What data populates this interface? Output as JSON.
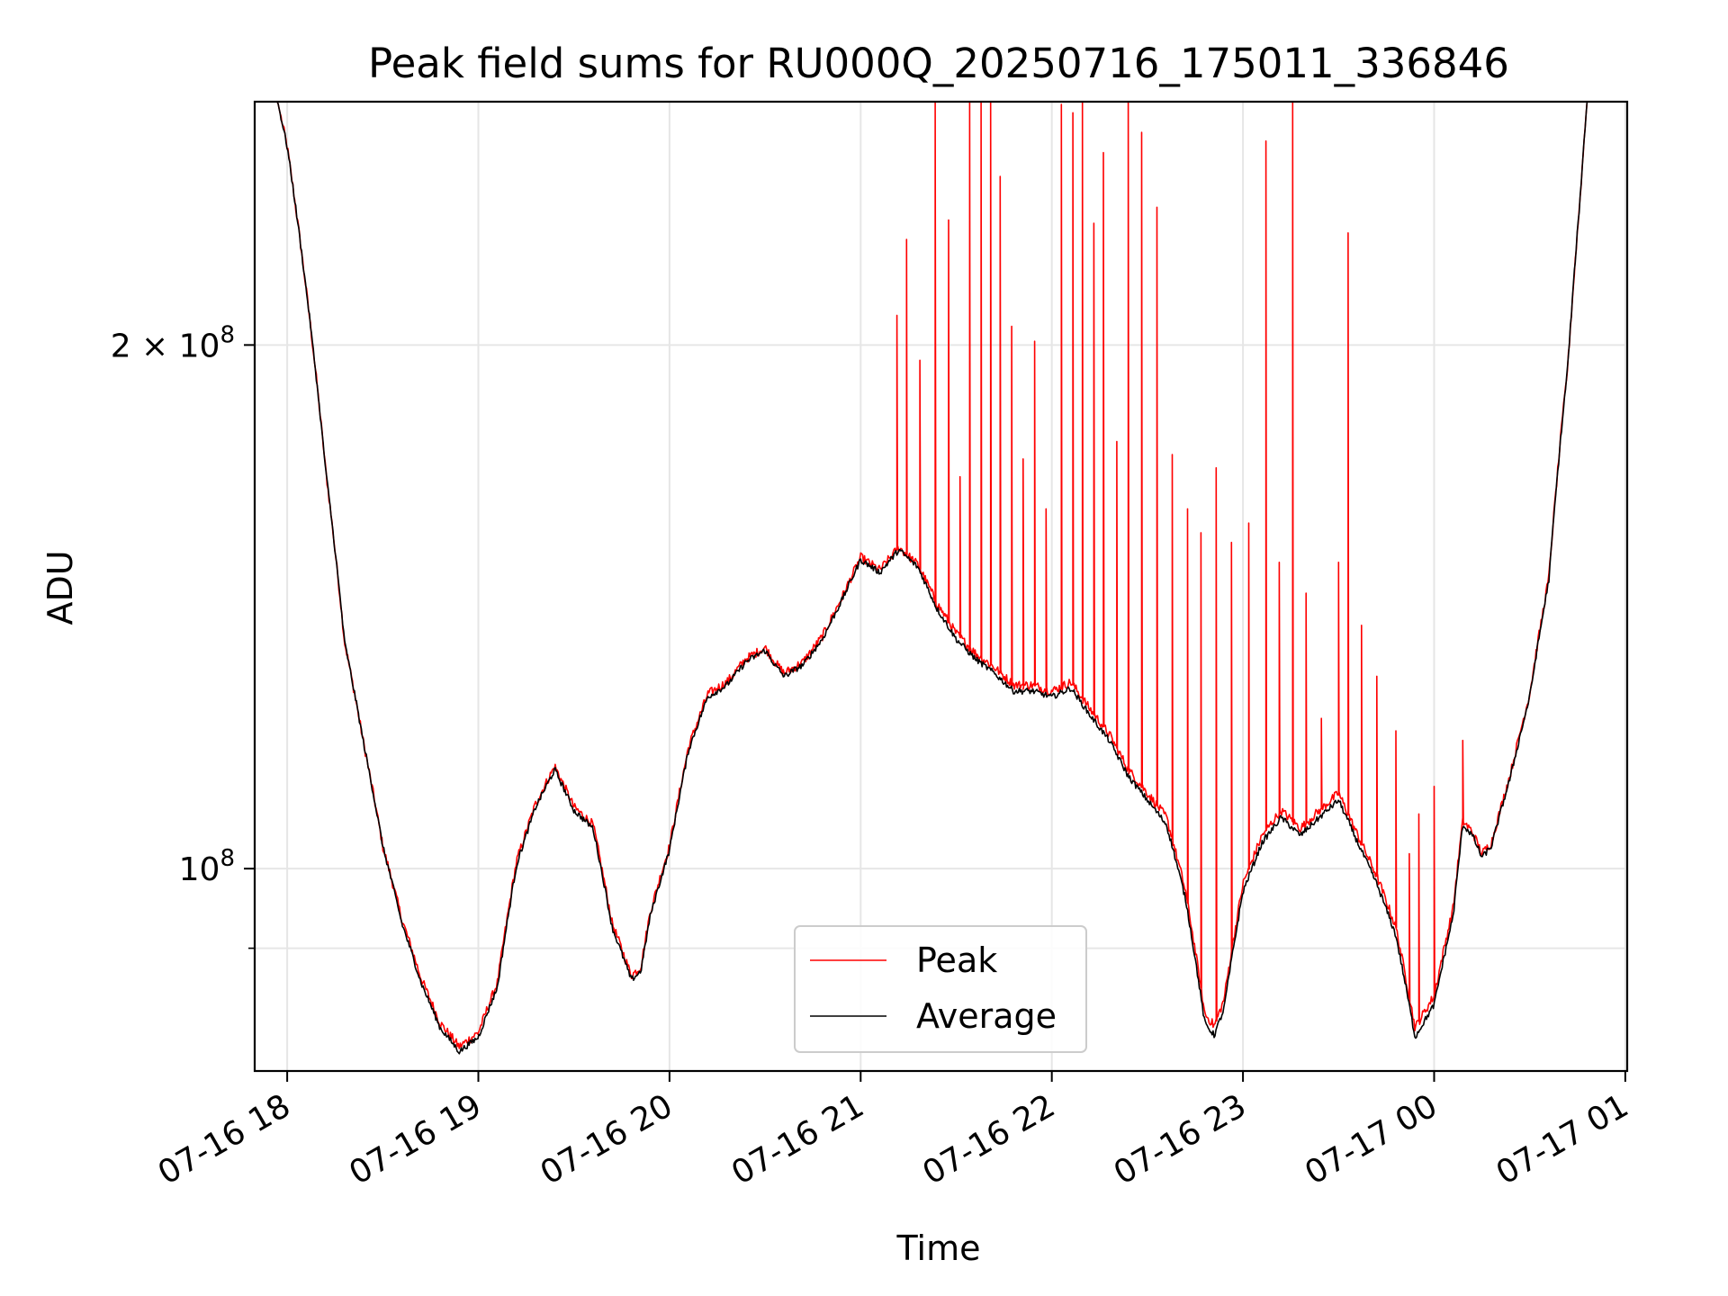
{
  "chart_data": {
    "type": "line",
    "title": "Peak field sums for RU000Q_20250716_175011_336846",
    "xlabel": "Time",
    "ylabel": "ADU",
    "x_unit": "hours",
    "xlim": [
      17.83,
      25.01
    ],
    "ylim": [
      76500000,
      276000000
    ],
    "y_scale": "log",
    "grid": true,
    "legend_position": "lower center",
    "x_ticks": [
      {
        "value": 18,
        "label": "07-16 18"
      },
      {
        "value": 19,
        "label": "07-16 19"
      },
      {
        "value": 20,
        "label": "07-16 20"
      },
      {
        "value": 21,
        "label": "07-16 21"
      },
      {
        "value": 22,
        "label": "07-16 22"
      },
      {
        "value": 23,
        "label": "07-16 23"
      },
      {
        "value": 24,
        "label": "07-17 00"
      },
      {
        "value": 25,
        "label": "07-17 01"
      }
    ],
    "y_ticks_major": [
      {
        "value": 100000000,
        "base": "10",
        "exp": "8",
        "prefix": ""
      },
      {
        "value": 200000000,
        "base": "10",
        "exp": "8",
        "prefix": "2 × "
      }
    ],
    "y_ticks_minor": [
      90000000
    ],
    "series": [
      {
        "name": "Peak",
        "color": "#ff0000",
        "baseline": [
          [
            17.84,
            276000000
          ],
          [
            17.95,
            276000000
          ],
          [
            18.0,
            260000000
          ],
          [
            18.1,
            215000000
          ],
          [
            18.2,
            170000000
          ],
          [
            18.3,
            135000000
          ],
          [
            18.4,
            118000000
          ],
          [
            18.5,
            103000000
          ],
          [
            18.6,
            93500000
          ],
          [
            18.7,
            86500000
          ],
          [
            18.8,
            81500000
          ],
          [
            18.9,
            79000000
          ],
          [
            19.0,
            80500000
          ],
          [
            19.1,
            86000000
          ],
          [
            19.2,
            101000000
          ],
          [
            19.3,
            109000000
          ],
          [
            19.4,
            114500000
          ],
          [
            19.5,
            108500000
          ],
          [
            19.6,
            106000000
          ],
          [
            19.7,
            93000000
          ],
          [
            19.8,
            86800000
          ],
          [
            19.85,
            87800000
          ],
          [
            19.9,
            94500000
          ],
          [
            20.0,
            103000000
          ],
          [
            20.1,
            117500000
          ],
          [
            20.2,
            126000000
          ],
          [
            20.3,
            128000000
          ],
          [
            20.4,
            132000000
          ],
          [
            20.5,
            134000000
          ],
          [
            20.55,
            131500000
          ],
          [
            20.6,
            129500000
          ],
          [
            20.7,
            131500000
          ],
          [
            20.8,
            136000000
          ],
          [
            20.9,
            143000000
          ],
          [
            21.0,
            151000000
          ],
          [
            21.1,
            148500000
          ],
          [
            21.2,
            153000000
          ],
          [
            21.3,
            149500000
          ],
          [
            21.4,
            142000000
          ],
          [
            21.5,
            136500000
          ],
          [
            21.6,
            133000000
          ],
          [
            21.7,
            130500000
          ],
          [
            21.8,
            127500000
          ],
          [
            21.9,
            127500000
          ],
          [
            22.0,
            126500000
          ],
          [
            22.1,
            128000000
          ],
          [
            22.2,
            123500000
          ],
          [
            22.3,
            119500000
          ],
          [
            22.4,
            114000000
          ],
          [
            22.5,
            110500000
          ],
          [
            22.6,
            107000000
          ],
          [
            22.7,
            97000000
          ],
          [
            22.8,
            82500000
          ],
          [
            22.85,
            81200000
          ],
          [
            22.9,
            84000000
          ],
          [
            23.0,
            98000000
          ],
          [
            23.1,
            104500000
          ],
          [
            23.2,
            108000000
          ],
          [
            23.3,
            105500000
          ],
          [
            23.4,
            108000000
          ],
          [
            23.5,
            110500000
          ],
          [
            23.6,
            104500000
          ],
          [
            23.7,
            99000000
          ],
          [
            23.8,
            92500000
          ],
          [
            23.9,
            81000000
          ],
          [
            24.0,
            84500000
          ],
          [
            24.1,
            95000000
          ],
          [
            24.15,
            106500000
          ],
          [
            24.2,
            105000000
          ],
          [
            24.25,
            102000000
          ],
          [
            24.3,
            103500000
          ],
          [
            24.4,
            113500000
          ],
          [
            24.5,
            126000000
          ],
          [
            24.6,
            147000000
          ],
          [
            24.7,
            195000000
          ],
          [
            24.76,
            240000000
          ],
          [
            24.8,
            276000000
          ],
          [
            25.01,
            276000000
          ]
        ],
        "spikes": [
          [
            21.19,
            208000000
          ],
          [
            21.24,
            230000000
          ],
          [
            21.31,
            196000000
          ],
          [
            21.39,
            276000000
          ],
          [
            21.46,
            236000000
          ],
          [
            21.52,
            168000000
          ],
          [
            21.57,
            276000000
          ],
          [
            21.63,
            276000000
          ],
          [
            21.68,
            276000000
          ],
          [
            21.73,
            250000000
          ],
          [
            21.79,
            205000000
          ],
          [
            21.85,
            172000000
          ],
          [
            21.91,
            201000000
          ],
          [
            21.97,
            161000000
          ],
          [
            22.05,
            275000000
          ],
          [
            22.11,
            272000000
          ],
          [
            22.16,
            276000000
          ],
          [
            22.22,
            235000000
          ],
          [
            22.27,
            258000000
          ],
          [
            22.34,
            176000000
          ],
          [
            22.4,
            276000000
          ],
          [
            22.47,
            265000000
          ],
          [
            22.55,
            240000000
          ],
          [
            22.63,
            173000000
          ],
          [
            22.71,
            161000000
          ],
          [
            22.78,
            156000000
          ],
          [
            22.86,
            170000000
          ],
          [
            22.94,
            154000000
          ],
          [
            23.03,
            158000000
          ],
          [
            23.12,
            262000000
          ],
          [
            23.19,
            150000000
          ],
          [
            23.26,
            276000000
          ],
          [
            23.33,
            144000000
          ],
          [
            23.41,
            122000000
          ],
          [
            23.5,
            150000000
          ],
          [
            23.55,
            232000000
          ],
          [
            23.62,
            138000000
          ],
          [
            23.7,
            129000000
          ],
          [
            23.8,
            120000000
          ],
          [
            23.87,
            102000000
          ],
          [
            23.92,
            107500000
          ],
          [
            24.0,
            111500000
          ],
          [
            24.15,
            118500000
          ]
        ]
      },
      {
        "name": "Average",
        "color": "#000000",
        "points": [
          [
            17.84,
            276000000
          ],
          [
            17.95,
            276000000
          ],
          [
            18.0,
            260000000
          ],
          [
            18.1,
            215000000
          ],
          [
            18.2,
            170000000
          ],
          [
            18.3,
            135000000
          ],
          [
            18.4,
            118000000
          ],
          [
            18.5,
            103000000
          ],
          [
            18.6,
            93000000
          ],
          [
            18.7,
            86000000
          ],
          [
            18.8,
            81000000
          ],
          [
            18.9,
            78500000
          ],
          [
            19.0,
            80000000
          ],
          [
            19.1,
            85500000
          ],
          [
            19.2,
            100500000
          ],
          [
            19.3,
            108500000
          ],
          [
            19.4,
            114000000
          ],
          [
            19.5,
            108000000
          ],
          [
            19.6,
            105500000
          ],
          [
            19.7,
            92500000
          ],
          [
            19.8,
            86300000
          ],
          [
            19.85,
            87300000
          ],
          [
            19.9,
            94000000
          ],
          [
            20.0,
            102500000
          ],
          [
            20.1,
            117000000
          ],
          [
            20.2,
            125500000
          ],
          [
            20.3,
            127500000
          ],
          [
            20.4,
            131500000
          ],
          [
            20.5,
            133500000
          ],
          [
            20.55,
            131000000
          ],
          [
            20.6,
            129000000
          ],
          [
            20.7,
            131000000
          ],
          [
            20.8,
            135500000
          ],
          [
            20.9,
            142500000
          ],
          [
            21.0,
            150500000
          ],
          [
            21.1,
            148000000
          ],
          [
            21.2,
            152500000
          ],
          [
            21.3,
            149000000
          ],
          [
            21.4,
            141000000
          ],
          [
            21.5,
            135500000
          ],
          [
            21.6,
            132000000
          ],
          [
            21.7,
            129500000
          ],
          [
            21.8,
            126500000
          ],
          [
            21.9,
            126500000
          ],
          [
            22.0,
            125500000
          ],
          [
            22.1,
            127000000
          ],
          [
            22.2,
            122500000
          ],
          [
            22.3,
            118500000
          ],
          [
            22.4,
            113000000
          ],
          [
            22.5,
            109500000
          ],
          [
            22.6,
            106000000
          ],
          [
            22.7,
            96000000
          ],
          [
            22.8,
            81500000
          ],
          [
            22.85,
            80200000
          ],
          [
            22.9,
            83000000
          ],
          [
            23.0,
            97000000
          ],
          [
            23.1,
            103500000
          ],
          [
            23.2,
            107000000
          ],
          [
            23.3,
            104500000
          ],
          [
            23.4,
            107000000
          ],
          [
            23.5,
            109500000
          ],
          [
            23.6,
            103500000
          ],
          [
            23.7,
            98000000
          ],
          [
            23.8,
            91500000
          ],
          [
            23.9,
            80000000
          ],
          [
            24.0,
            83500000
          ],
          [
            24.1,
            94000000
          ],
          [
            24.15,
            106000000
          ],
          [
            24.2,
            104500000
          ],
          [
            24.25,
            101500000
          ],
          [
            24.3,
            103000000
          ],
          [
            24.4,
            113000000
          ],
          [
            24.5,
            125500000
          ],
          [
            24.6,
            146500000
          ],
          [
            24.7,
            195000000
          ],
          [
            24.76,
            240000000
          ],
          [
            24.8,
            276000000
          ],
          [
            25.01,
            276000000
          ]
        ]
      }
    ],
    "legend": {
      "entries": [
        {
          "label": "Peak",
          "color": "#ff0000"
        },
        {
          "label": "Average",
          "color": "#000000"
        }
      ]
    }
  }
}
